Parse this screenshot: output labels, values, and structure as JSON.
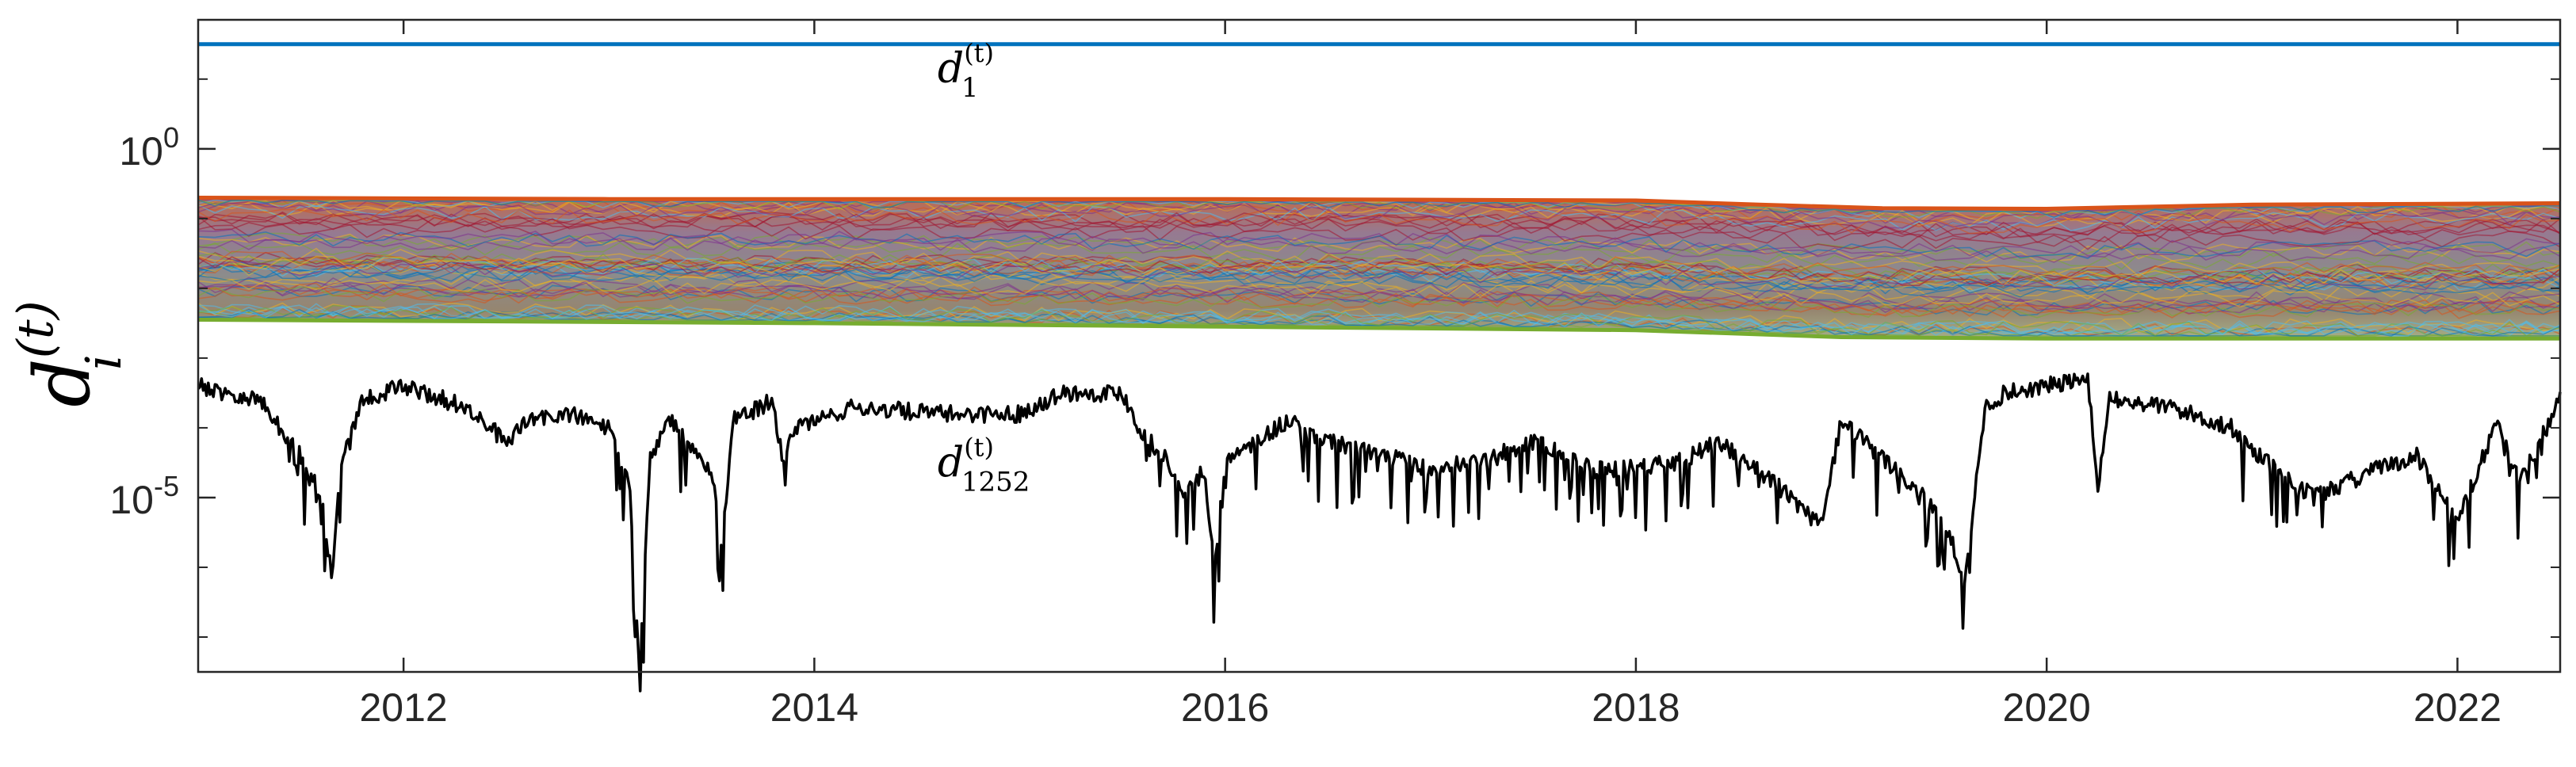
{
  "chart_data": {
    "type": "line",
    "title": "",
    "xlabel": "",
    "ylabel": {
      "base": "d",
      "subscript": "i",
      "superscript": "(t)"
    },
    "y_scale": "log",
    "xlim": [
      2011.0,
      2022.5
    ],
    "ylim_log10": [
      -7.5,
      1.85
    ],
    "x_ticks": [
      {
        "value": 2012,
        "label": "2012"
      },
      {
        "value": 2014,
        "label": "2014"
      },
      {
        "value": 2016,
        "label": "2016"
      },
      {
        "value": 2018,
        "label": "2018"
      },
      {
        "value": 2020,
        "label": "2020"
      },
      {
        "value": 2022,
        "label": "2022"
      }
    ],
    "y_ticks": [
      {
        "value": 1,
        "base": "10",
        "exponent": "0"
      },
      {
        "value": 1e-05,
        "base": "10",
        "exponent": "-5"
      }
    ],
    "grid": false,
    "legend": "none",
    "annotations": [
      {
        "id": "d1",
        "base": "d",
        "subscript": "1",
        "superscript": "(t)",
        "x": 2014.6,
        "log10_y": 0.95
      },
      {
        "id": "d1252",
        "base": "d",
        "subscript": "1252",
        "superscript": "(t)",
        "x": 2014.6,
        "log10_y": -4.7
      }
    ],
    "series": [
      {
        "id": "top",
        "color": "#0072BD",
        "x": [
          2011.0,
          2022.5
        ],
        "log10_y": [
          1.5,
          1.5
        ]
      },
      {
        "id": "band_upper",
        "color": "#D95319",
        "x": [
          2011.0,
          2013.0,
          2016.0,
          2018.0,
          2018.6,
          2019.2,
          2020.0,
          2021.0,
          2022.5
        ],
        "log10_y": [
          -0.7,
          -0.72,
          -0.72,
          -0.74,
          -0.8,
          -0.85,
          -0.86,
          -0.8,
          -0.78
        ]
      },
      {
        "id": "band_lower",
        "color": "#77AC30",
        "x": [
          2011.0,
          2014.0,
          2016.0,
          2018.0,
          2019.0,
          2020.0,
          2022.5
        ],
        "log10_y": [
          -2.45,
          -2.5,
          -2.55,
          -2.6,
          -2.7,
          -2.72,
          -2.72
        ]
      },
      {
        "id": "bottom",
        "color": "#000000",
        "x": [
          2011.0,
          2011.3,
          2011.5,
          2011.6,
          2011.65,
          2011.7,
          2011.8,
          2012.0,
          2012.3,
          2012.5,
          2012.6,
          2012.8,
          2013.0,
          2013.1,
          2013.15,
          2013.2,
          2013.3,
          2013.5,
          2013.55,
          2013.6,
          2013.8,
          2013.85,
          2013.9,
          2014.2,
          2014.6,
          2015.0,
          2015.2,
          2015.5,
          2015.6,
          2015.7,
          2015.8,
          2015.9,
          2015.95,
          2016.0,
          2016.3,
          2016.5,
          2016.8,
          2017.0,
          2017.3,
          2017.5,
          2017.8,
          2018.2,
          2018.4,
          2018.6,
          2018.9,
          2019.0,
          2019.3,
          2019.5,
          2019.6,
          2019.7,
          2019.8,
          2020.0,
          2020.2,
          2020.25,
          2020.3,
          2020.6,
          2020.9,
          2021.0,
          2021.3,
          2021.6,
          2021.8,
          2022.0,
          2022.2,
          2022.3,
          2022.5
        ],
        "log10_y": [
          -3.4,
          -3.6,
          -4.4,
          -5.0,
          -6.1,
          -4.4,
          -3.6,
          -3.4,
          -3.7,
          -4.2,
          -3.9,
          -3.8,
          -4.0,
          -4.8,
          -7.5,
          -4.4,
          -3.9,
          -4.6,
          -5.8,
          -3.9,
          -3.6,
          -4.6,
          -4.0,
          -3.7,
          -3.8,
          -3.8,
          -3.5,
          -3.5,
          -4.1,
          -4.4,
          -5.0,
          -4.6,
          -6.0,
          -4.5,
          -3.9,
          -4.2,
          -4.4,
          -4.6,
          -4.4,
          -4.2,
          -4.6,
          -4.5,
          -4.2,
          -4.6,
          -5.4,
          -3.9,
          -4.7,
          -5.3,
          -6.2,
          -3.7,
          -3.5,
          -3.4,
          -3.3,
          -4.9,
          -3.6,
          -3.7,
          -4.0,
          -4.3,
          -5.0,
          -4.6,
          -4.4,
          -5.3,
          -3.9,
          -4.8,
          -3.6
        ]
      }
    ]
  }
}
